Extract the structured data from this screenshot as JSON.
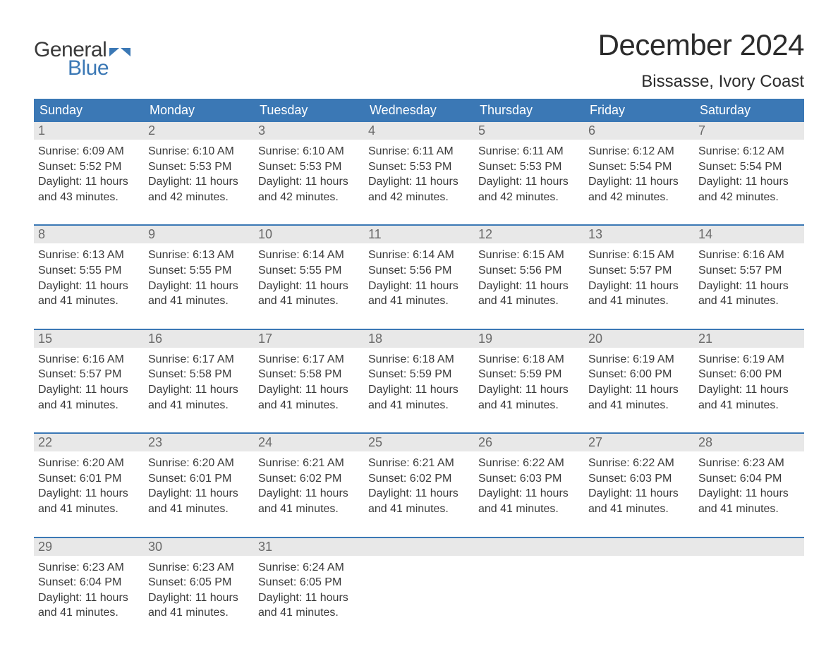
{
  "brand": {
    "word1": "General",
    "word2": "Blue",
    "flag_color": "#3b78b5",
    "word1_color": "#3a3a3a",
    "word2_color": "#3b78b5"
  },
  "title": "December 2024",
  "location": "Bissasse, Ivory Coast",
  "colors": {
    "header_bg": "#3b78b5",
    "header_text": "#ffffff",
    "daynum_bg": "#e8e8e8",
    "daynum_text": "#6a6a6a",
    "body_text": "#3a3a3a",
    "page_bg": "#ffffff",
    "week_divider": "#3b78b5"
  },
  "typography": {
    "title_fontsize": 42,
    "location_fontsize": 24,
    "dow_fontsize": 18,
    "daynum_fontsize": 18,
    "body_fontsize": 16,
    "logo_fontsize": 30
  },
  "days_of_week": [
    "Sunday",
    "Monday",
    "Tuesday",
    "Wednesday",
    "Thursday",
    "Friday",
    "Saturday"
  ],
  "labels": {
    "sunrise": "Sunrise:",
    "sunset": "Sunset:",
    "daylight": "Daylight:"
  },
  "weeks": [
    [
      {
        "n": "1",
        "sunrise": "6:09 AM",
        "sunset": "5:52 PM",
        "daylight": "11 hours and 43 minutes."
      },
      {
        "n": "2",
        "sunrise": "6:10 AM",
        "sunset": "5:53 PM",
        "daylight": "11 hours and 42 minutes."
      },
      {
        "n": "3",
        "sunrise": "6:10 AM",
        "sunset": "5:53 PM",
        "daylight": "11 hours and 42 minutes."
      },
      {
        "n": "4",
        "sunrise": "6:11 AM",
        "sunset": "5:53 PM",
        "daylight": "11 hours and 42 minutes."
      },
      {
        "n": "5",
        "sunrise": "6:11 AM",
        "sunset": "5:53 PM",
        "daylight": "11 hours and 42 minutes."
      },
      {
        "n": "6",
        "sunrise": "6:12 AM",
        "sunset": "5:54 PM",
        "daylight": "11 hours and 42 minutes."
      },
      {
        "n": "7",
        "sunrise": "6:12 AM",
        "sunset": "5:54 PM",
        "daylight": "11 hours and 42 minutes."
      }
    ],
    [
      {
        "n": "8",
        "sunrise": "6:13 AM",
        "sunset": "5:55 PM",
        "daylight": "11 hours and 41 minutes."
      },
      {
        "n": "9",
        "sunrise": "6:13 AM",
        "sunset": "5:55 PM",
        "daylight": "11 hours and 41 minutes."
      },
      {
        "n": "10",
        "sunrise": "6:14 AM",
        "sunset": "5:55 PM",
        "daylight": "11 hours and 41 minutes."
      },
      {
        "n": "11",
        "sunrise": "6:14 AM",
        "sunset": "5:56 PM",
        "daylight": "11 hours and 41 minutes."
      },
      {
        "n": "12",
        "sunrise": "6:15 AM",
        "sunset": "5:56 PM",
        "daylight": "11 hours and 41 minutes."
      },
      {
        "n": "13",
        "sunrise": "6:15 AM",
        "sunset": "5:57 PM",
        "daylight": "11 hours and 41 minutes."
      },
      {
        "n": "14",
        "sunrise": "6:16 AM",
        "sunset": "5:57 PM",
        "daylight": "11 hours and 41 minutes."
      }
    ],
    [
      {
        "n": "15",
        "sunrise": "6:16 AM",
        "sunset": "5:57 PM",
        "daylight": "11 hours and 41 minutes."
      },
      {
        "n": "16",
        "sunrise": "6:17 AM",
        "sunset": "5:58 PM",
        "daylight": "11 hours and 41 minutes."
      },
      {
        "n": "17",
        "sunrise": "6:17 AM",
        "sunset": "5:58 PM",
        "daylight": "11 hours and 41 minutes."
      },
      {
        "n": "18",
        "sunrise": "6:18 AM",
        "sunset": "5:59 PM",
        "daylight": "11 hours and 41 minutes."
      },
      {
        "n": "19",
        "sunrise": "6:18 AM",
        "sunset": "5:59 PM",
        "daylight": "11 hours and 41 minutes."
      },
      {
        "n": "20",
        "sunrise": "6:19 AM",
        "sunset": "6:00 PM",
        "daylight": "11 hours and 41 minutes."
      },
      {
        "n": "21",
        "sunrise": "6:19 AM",
        "sunset": "6:00 PM",
        "daylight": "11 hours and 41 minutes."
      }
    ],
    [
      {
        "n": "22",
        "sunrise": "6:20 AM",
        "sunset": "6:01 PM",
        "daylight": "11 hours and 41 minutes."
      },
      {
        "n": "23",
        "sunrise": "6:20 AM",
        "sunset": "6:01 PM",
        "daylight": "11 hours and 41 minutes."
      },
      {
        "n": "24",
        "sunrise": "6:21 AM",
        "sunset": "6:02 PM",
        "daylight": "11 hours and 41 minutes."
      },
      {
        "n": "25",
        "sunrise": "6:21 AM",
        "sunset": "6:02 PM",
        "daylight": "11 hours and 41 minutes."
      },
      {
        "n": "26",
        "sunrise": "6:22 AM",
        "sunset": "6:03 PM",
        "daylight": "11 hours and 41 minutes."
      },
      {
        "n": "27",
        "sunrise": "6:22 AM",
        "sunset": "6:03 PM",
        "daylight": "11 hours and 41 minutes."
      },
      {
        "n": "28",
        "sunrise": "6:23 AM",
        "sunset": "6:04 PM",
        "daylight": "11 hours and 41 minutes."
      }
    ],
    [
      {
        "n": "29",
        "sunrise": "6:23 AM",
        "sunset": "6:04 PM",
        "daylight": "11 hours and 41 minutes."
      },
      {
        "n": "30",
        "sunrise": "6:23 AM",
        "sunset": "6:05 PM",
        "daylight": "11 hours and 41 minutes."
      },
      {
        "n": "31",
        "sunrise": "6:24 AM",
        "sunset": "6:05 PM",
        "daylight": "11 hours and 41 minutes."
      },
      {
        "empty": true
      },
      {
        "empty": true
      },
      {
        "empty": true
      },
      {
        "empty": true
      }
    ]
  ]
}
